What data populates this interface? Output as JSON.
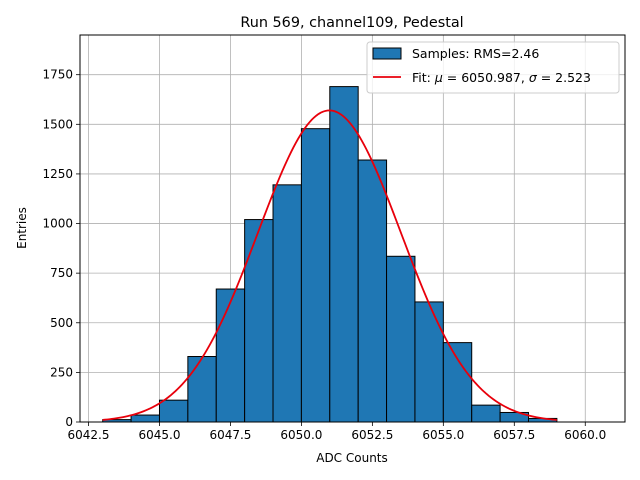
{
  "chart_data": {
    "type": "bar",
    "title": "Run 569, channel109, Pedestal",
    "xlabel": "ADC Counts",
    "ylabel": "Entries",
    "xlim": [
      6042.2,
      6061.4
    ],
    "ylim": [
      0,
      1950
    ],
    "xticks": [
      6042.5,
      6045.0,
      6047.5,
      6050.0,
      6052.5,
      6055.0,
      6057.5,
      6060.0
    ],
    "xtick_labels": [
      "6042.5",
      "6045.0",
      "6047.5",
      "6050.0",
      "6052.5",
      "6055.0",
      "6057.5",
      "6060.0"
    ],
    "yticks": [
      0,
      250,
      500,
      750,
      1000,
      1250,
      1500,
      1750
    ],
    "ytick_labels": [
      "0",
      "250",
      "500",
      "750",
      "1000",
      "1250",
      "1500",
      "1750"
    ],
    "grid": true,
    "legend_position": "top-right",
    "histogram": {
      "name": "Samples: RMS=2.46",
      "color": "#1f77b4",
      "edge_color": "#000000",
      "bin_edges": [
        6043,
        6044,
        6045,
        6046,
        6047,
        6048,
        6049,
        6050,
        6051,
        6052,
        6053,
        6054,
        6055,
        6056,
        6057,
        6058,
        6059
      ],
      "counts": [
        12,
        35,
        110,
        330,
        670,
        1020,
        1195,
        1478,
        1690,
        1320,
        835,
        605,
        400,
        85,
        48,
        18
      ]
    },
    "fit": {
      "name_prefix": "Fit: ",
      "name_mu": "μ",
      "name_mid": " = 6050.987, ",
      "name_sigma": "σ",
      "name_suffix": " = 2.523",
      "color": "#e8000b",
      "mu": 6050.987,
      "sigma": 2.523,
      "amplitude": 1570,
      "x_range": [
        6043,
        6059
      ]
    }
  }
}
